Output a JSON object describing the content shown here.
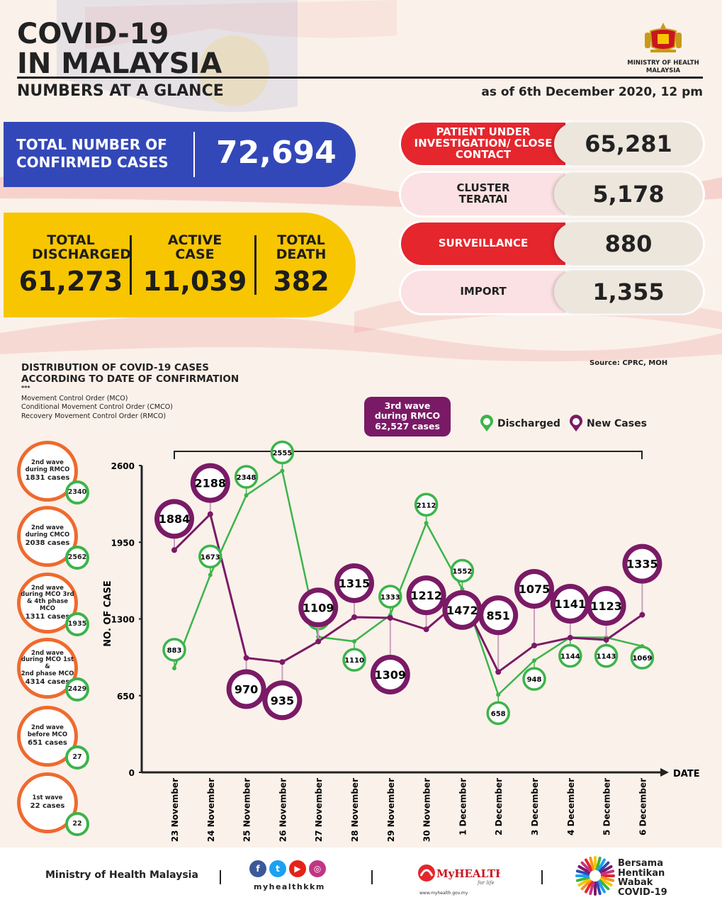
{
  "header": {
    "title_line1": "COVID-19",
    "title_line2": "IN MALAYSIA",
    "subtitle": "NUMBERS AT A GLANCE",
    "as_of": "as of 6th December 2020, 12 pm",
    "ministry": "MINISTRY OF HEALTH",
    "ministry_country": "MALAYSIA"
  },
  "totals": {
    "confirmed_label": "TOTAL NUMBER OF CONFIRMED CASES",
    "confirmed_value": "72,694",
    "discharged_label": "TOTAL DISCHARGED",
    "discharged_value": "61,273",
    "active_label": "ACTIVE CASE",
    "active_value": "11,039",
    "death_label": "TOTAL DEATH",
    "death_value": "382"
  },
  "breakdown": [
    {
      "label": "PATIENT UNDER INVESTIGATION/ CLOSE CONTACT",
      "value": "65,281",
      "style": "red"
    },
    {
      "label": "CLUSTER TERATAI",
      "value": "5,178",
      "style": "pink"
    },
    {
      "label": "SURVEILLANCE",
      "value": "880",
      "style": "red"
    },
    {
      "label": "IMPORT",
      "value": "1,355",
      "style": "pink"
    }
  ],
  "distribution": {
    "title_line1": "DISTRIBUTION OF COVID-19 CASES",
    "title_line2": "ACCORDING TO DATE OF CONFIRMATION",
    "asterisks": "***",
    "mco": "Movement Control Order (MCO)",
    "cmco": "Conditional Movement Control Order (CMCO)",
    "rmco": "Recovery Movement Control Order (RMCO)",
    "source": "Source: CPRC, MOH",
    "wave3_line1": "3rd wave",
    "wave3_line2": "during RMCO",
    "wave3_line3": "62,527 cases"
  },
  "side_waves": [
    {
      "l1": "2nd wave",
      "l2": "during RMCO",
      "l3": "1831 cases",
      "discharged": "2340"
    },
    {
      "l1": "2nd wave",
      "l2": "during CMCO",
      "l3": "2038 cases",
      "discharged": "2562"
    },
    {
      "l1": "2nd wave",
      "l2": "during MCO 3rd",
      "l3": "& 4th phase MCO",
      "l4": "1311 cases",
      "discharged": "1935"
    },
    {
      "l1": "2nd wave",
      "l2": "during MCO 1st &",
      "l3": "2nd phase MCO",
      "l4": "4314 cases",
      "discharged": "2429"
    },
    {
      "l1": "2nd wave",
      "l2": "before MCO",
      "l3": "651 cases",
      "discharged": "27"
    },
    {
      "l1": "1st wave",
      "l2": "22 cases",
      "discharged": "22"
    }
  ],
  "chart_data": {
    "type": "line",
    "xlabel": "DATE",
    "ylabel": "NO. OF CASE",
    "ylim": [
      0,
      2600
    ],
    "yticks": [
      0,
      650,
      1300,
      1950,
      2600
    ],
    "categories": [
      "23 November",
      "24 November",
      "25 November",
      "26 November",
      "27 November",
      "28 November",
      "29 November",
      "30 November",
      "1 December",
      "2 December",
      "3 December",
      "4 December",
      "5 December",
      "6 December"
    ],
    "series": [
      {
        "name": "Discharged",
        "color": "#3cb44a",
        "values": [
          883,
          1673,
          2348,
          2555,
          1148,
          1110,
          1333,
          2112,
          1552,
          658,
          948,
          1144,
          1143,
          1069
        ]
      },
      {
        "name": "New Cases",
        "color": "#7a1a66",
        "values": [
          1884,
          2188,
          970,
          935,
          1109,
          1315,
          1309,
          1212,
          1472,
          851,
          1075,
          1141,
          1123,
          1335
        ]
      }
    ]
  },
  "footer": {
    "ministry": "Ministry of Health Malaysia",
    "handle": "myhealthkkm",
    "myhealth": "MyHEALTH",
    "myhealth_tag": "for life",
    "myhealth_url": "www.myhealth.gov.my",
    "bersama": "Bersama",
    "hentikan": "Hentikan",
    "wabak": "Wabak",
    "covid": "COVID-19"
  }
}
